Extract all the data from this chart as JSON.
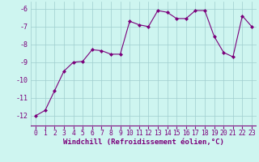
{
  "x": [
    0,
    1,
    2,
    3,
    4,
    5,
    6,
    7,
    8,
    9,
    10,
    11,
    12,
    13,
    14,
    15,
    16,
    17,
    18,
    19,
    20,
    21,
    22,
    23
  ],
  "y": [
    -12.0,
    -11.7,
    -10.6,
    -9.5,
    -9.0,
    -8.95,
    -8.3,
    -8.35,
    -8.55,
    -8.55,
    -6.7,
    -6.9,
    -7.0,
    -6.1,
    -6.2,
    -6.55,
    -6.55,
    -6.1,
    -6.1,
    -7.55,
    -8.45,
    -8.7,
    -6.4,
    -7.0
  ],
  "line_color": "#7B007B",
  "marker": "D",
  "marker_size": 2,
  "bg_color": "#cef5f0",
  "grid_color": "#a0cece",
  "xlabel": "Windchill (Refroidissement éolien,°C)",
  "xlim": [
    -0.5,
    23.5
  ],
  "ylim": [
    -12.6,
    -5.6
  ],
  "yticks": [
    -12,
    -11,
    -10,
    -9,
    -8,
    -7,
    -6
  ],
  "xticks": [
    0,
    1,
    2,
    3,
    4,
    5,
    6,
    7,
    8,
    9,
    10,
    11,
    12,
    13,
    14,
    15,
    16,
    17,
    18,
    19,
    20,
    21,
    22,
    23
  ],
  "tick_label_color": "#7B007B",
  "xlabel_color": "#7B007B",
  "xlabel_fontsize": 6.5,
  "tick_fontsize": 5.8,
  "ytick_fontsize": 6.0
}
